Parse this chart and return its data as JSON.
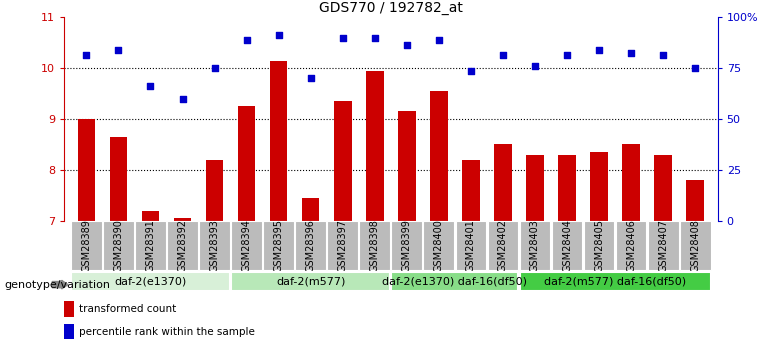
{
  "title": "GDS770 / 192782_at",
  "samples": [
    "GSM28389",
    "GSM28390",
    "GSM28391",
    "GSM28392",
    "GSM28393",
    "GSM28394",
    "GSM28395",
    "GSM28396",
    "GSM28397",
    "GSM28398",
    "GSM28399",
    "GSM28400",
    "GSM28401",
    "GSM28402",
    "GSM28403",
    "GSM28404",
    "GSM28405",
    "GSM28406",
    "GSM28407",
    "GSM28408"
  ],
  "bar_values": [
    9.0,
    8.65,
    7.2,
    7.05,
    8.2,
    9.25,
    10.15,
    7.45,
    9.35,
    9.95,
    9.15,
    9.55,
    8.2,
    8.5,
    8.3,
    8.3,
    8.35,
    8.5,
    8.3,
    7.8
  ],
  "dot_values": [
    10.25,
    10.35,
    9.65,
    9.4,
    10.0,
    10.55,
    10.65,
    9.8,
    10.6,
    10.6,
    10.45,
    10.55,
    9.95,
    10.25,
    10.05,
    10.25,
    10.35,
    10.3,
    10.25,
    10.0
  ],
  "bar_color": "#cc0000",
  "dot_color": "#0000cc",
  "ylim": [
    7,
    11
  ],
  "y_ticks": [
    7,
    8,
    9,
    10,
    11
  ],
  "y2_ticks": [
    0,
    25,
    50,
    75,
    100
  ],
  "y2_tick_labels": [
    "0",
    "25",
    "50",
    "75",
    "100%"
  ],
  "groups": [
    {
      "label": "daf-2(e1370)",
      "start": 0,
      "end": 4,
      "color": "#d8f0d8"
    },
    {
      "label": "daf-2(m577)",
      "start": 5,
      "end": 9,
      "color": "#b8e8b8"
    },
    {
      "label": "daf-2(e1370) daf-16(df50)",
      "start": 10,
      "end": 13,
      "color": "#88dd88"
    },
    {
      "label": "daf-2(m577) daf-16(df50)",
      "start": 14,
      "end": 19,
      "color": "#44cc44"
    }
  ],
  "legend_bar_label": "transformed count",
  "legend_dot_label": "percentile rank within the sample",
  "xlabel_left": "genotype/variation",
  "dotted_lines": [
    8.0,
    9.0,
    10.0
  ],
  "title_fontsize": 10,
  "tick_fontsize": 7,
  "bar_width": 0.55,
  "group_label_fontsize": 8,
  "xlabel_fontsize": 8,
  "sample_box_color": "#bbbbbb",
  "bg_color": "#ffffff"
}
